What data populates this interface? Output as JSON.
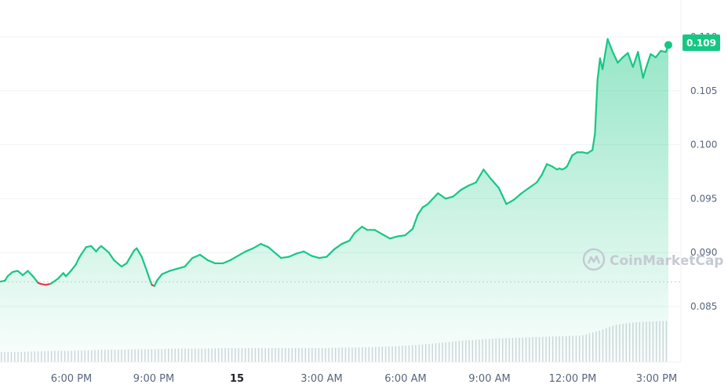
{
  "chart_data": {
    "type": "line",
    "x_ticks": [
      "6:00 PM",
      "9:00 PM",
      "15",
      "3:00 AM",
      "6:00 AM",
      "9:00 AM",
      "12:00 PM",
      "3:00 PM"
    ],
    "x_ticks_bold": [
      false,
      false,
      true,
      false,
      false,
      false,
      false,
      false
    ],
    "y_ticks": [
      "0.110",
      "0.105",
      "0.100",
      "0.095",
      "0.090",
      "0.085"
    ],
    "y_tick_values": [
      0.11,
      0.105,
      0.1,
      0.095,
      0.09,
      0.085
    ],
    "ylim": [
      0.0815,
      0.1124
    ],
    "reference_price": 0.08728,
    "current_price_label": "0.109",
    "current_price": 0.10925,
    "x_hours": [
      0.0,
      0.2,
      0.3,
      0.5,
      0.7,
      0.9,
      1.1,
      1.3,
      1.5,
      1.6,
      1.8,
      2.0,
      2.3,
      2.5,
      2.6,
      2.8,
      3.0,
      3.1,
      3.2,
      3.4,
      3.6,
      3.8,
      3.9,
      4.0,
      4.1,
      4.3,
      4.5,
      4.8,
      5.0,
      5.3,
      5.4,
      5.6,
      5.8,
      5.9,
      6.0,
      6.1,
      6.2,
      6.4,
      6.7,
      7.0,
      7.3,
      7.6,
      7.9,
      8.2,
      8.5,
      8.8,
      9.1,
      9.4,
      9.7,
      10.0,
      10.3,
      10.6,
      10.9,
      11.1,
      11.4,
      11.7,
      12.0,
      12.3,
      12.6,
      12.9,
      13.2,
      13.5,
      13.8,
      14.0,
      14.3,
      14.5,
      14.8,
      15.1,
      15.4,
      15.7,
      16.0,
      16.3,
      16.5,
      16.7,
      16.9,
      17.1,
      17.3,
      17.6,
      17.9,
      18.2,
      18.5,
      18.8,
      19.1,
      19.4,
      19.7,
      20.0,
      20.3,
      20.6,
      20.9,
      21.2,
      21.4,
      21.6,
      21.8,
      22.0,
      22.1,
      22.2,
      22.3,
      22.4,
      22.5,
      22.6,
      22.8,
      23.0,
      23.2,
      23.4,
      23.5,
      23.6
    ],
    "values": [
      0.0873,
      0.0874,
      0.0878,
      0.0882,
      0.0883,
      0.0879,
      0.0883,
      0.0878,
      0.0872,
      0.0871,
      0.087,
      0.0871,
      0.0876,
      0.0881,
      0.0878,
      0.0883,
      0.0889,
      0.0894,
      0.0898,
      0.0905,
      0.0906,
      0.0901,
      0.0904,
      0.0906,
      0.0904,
      0.09,
      0.0893,
      0.0887,
      0.089,
      0.0902,
      0.0904,
      0.0896,
      0.0883,
      0.0876,
      0.087,
      0.0869,
      0.0874,
      0.088,
      0.0883,
      0.0885,
      0.0887,
      0.0895,
      0.0898,
      0.0893,
      0.089,
      0.089,
      0.0893,
      0.0897,
      0.0901,
      0.0904,
      0.0908,
      0.0905,
      0.0899,
      0.0895,
      0.0896,
      0.0899,
      0.0901,
      0.0897,
      0.0895,
      0.0896,
      0.0903,
      0.0908,
      0.0911,
      0.0918,
      0.0924,
      0.0921,
      0.0921,
      0.0917,
      0.0913,
      0.0915,
      0.0916,
      0.0922,
      0.0935,
      0.0942,
      0.0945,
      0.095,
      0.0955,
      0.095,
      0.0952,
      0.0958,
      0.0962,
      0.0965,
      0.0977,
      0.0968,
      0.096,
      0.0945,
      0.0949,
      0.0955,
      0.096,
      0.0965,
      0.0972,
      0.0982,
      0.098,
      0.0977,
      0.0978,
      0.0977,
      0.0978,
      0.098,
      0.0985,
      0.099,
      0.0993,
      0.0993,
      0.0992,
      0.0995,
      0.101,
      0.106
    ],
    "tail_x_hours": [
      23.7,
      23.8,
      24.0,
      24.2,
      24.4,
      24.6,
      24.8,
      25.0,
      25.2,
      25.4,
      25.5,
      25.7,
      25.9,
      26.1,
      26.3,
      26.4
    ],
    "tail_values": [
      0.108,
      0.107,
      0.1098,
      0.1086,
      0.1076,
      0.1081,
      0.1085,
      0.1072,
      0.1086,
      0.1062,
      0.107,
      0.1084,
      0.1081,
      0.1087,
      0.1086,
      0.10925
    ],
    "x_start_hour": 15.7,
    "volume_levels": [
      0.18,
      0.18,
      0.19,
      0.2,
      0.2,
      0.21,
      0.22,
      0.22,
      0.23,
      0.23,
      0.24,
      0.24,
      0.24,
      0.25,
      0.25,
      0.25,
      0.25,
      0.25,
      0.25,
      0.25,
      0.26,
      0.26,
      0.27,
      0.28,
      0.3,
      0.32,
      0.35,
      0.38,
      0.4,
      0.42,
      0.43,
      0.44,
      0.45,
      0.46,
      0.47,
      0.55,
      0.66,
      0.7,
      0.72,
      0.73
    ],
    "colors": {
      "up": "#16c784",
      "down": "#ea3943",
      "grid": "#eff2f5",
      "reference": "#c5cad3",
      "volume": "#d1d5dc",
      "badge": "#16c784"
    },
    "watermark": "CoinMarketCap"
  }
}
